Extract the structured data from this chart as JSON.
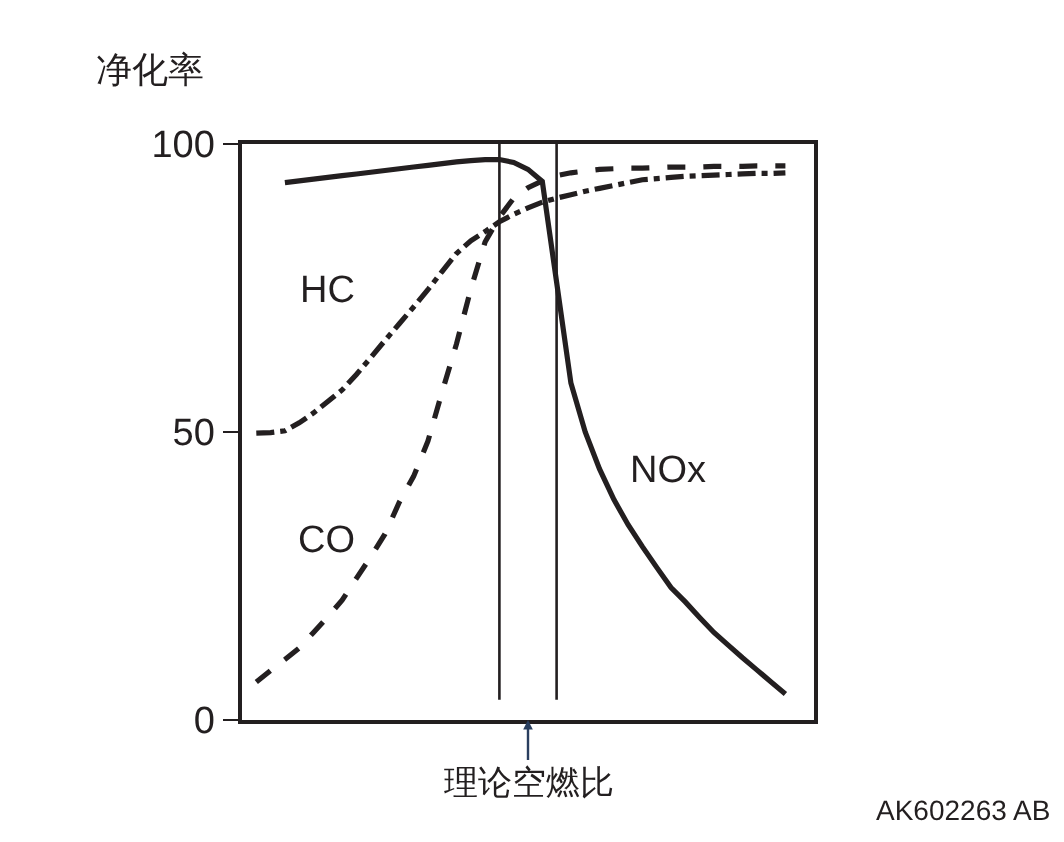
{
  "chart_data": {
    "type": "line",
    "ylabel": "净化率",
    "categories": [
      null,
      null,
      null,
      null,
      null,
      null,
      null,
      null,
      null,
      null,
      null,
      null,
      null,
      null,
      null,
      null,
      null,
      null,
      null,
      null,
      null,
      null,
      null,
      null,
      null,
      null,
      null,
      null,
      null,
      null,
      null,
      null,
      null,
      null,
      null,
      null,
      null,
      null,
      null,
      null,
      null
    ],
    "ylim": [
      0,
      100
    ],
    "yticks": [
      0,
      50,
      100
    ],
    "tick_labels": "y",
    "legend": false,
    "marker": "none",
    "series": [
      {
        "name": "NOx",
        "color": "#231f20",
        "line_style": "solid",
        "values": [
          null,
          null,
          null,
          93.3,
          93.6,
          93.9,
          94.2,
          94.5,
          94.8,
          95.1,
          95.4,
          95.7,
          96,
          96.3,
          96.6,
          96.9,
          97.1,
          97.3,
          97.3,
          96.8,
          95.6,
          93.5,
          76,
          58.5,
          50,
          43.6,
          38.3,
          33.9,
          30.1,
          26.5,
          23,
          20.5,
          17.8,
          15.2,
          13,
          10.8,
          8.7,
          6.6,
          4.5,
          null,
          null
        ]
      },
      {
        "name": "CO",
        "color": "#231f20",
        "line_style": "dashed",
        "values": [
          null,
          6.6,
          8.6,
          10.5,
          12.5,
          15.2,
          17.9,
          20.8,
          24.6,
          28.3,
          32.3,
          37.8,
          42.3,
          48.4,
          57,
          65.3,
          74.8,
          83,
          87.3,
          90.6,
          92.4,
          93.6,
          94.5,
          95,
          95.3,
          95.6,
          95.7,
          95.8,
          95.8,
          95.9,
          96,
          96,
          96,
          96.1,
          96.1,
          96.1,
          96.2,
          96.2,
          96.2,
          null,
          null
        ]
      },
      {
        "name": "HC",
        "color": "#231f20",
        "line_style": "dashdot",
        "values": [
          null,
          49.8,
          49.9,
          50.2,
          51.6,
          53.3,
          55.3,
          57.3,
          60,
          62.9,
          65.9,
          68.8,
          71.7,
          74.7,
          77.9,
          81,
          83.2,
          84.8,
          86.5,
          87.8,
          88.9,
          89.9,
          90.6,
          91.2,
          91.8,
          92.3,
          92.8,
          93.3,
          93.8,
          94,
          94.2,
          94.4,
          94.5,
          94.6,
          94.7,
          94.8,
          94.9,
          94.9,
          95,
          null,
          null
        ]
      }
    ],
    "annotations": [
      "理论空燃比",
      "AK602263 AB"
    ]
  }
}
